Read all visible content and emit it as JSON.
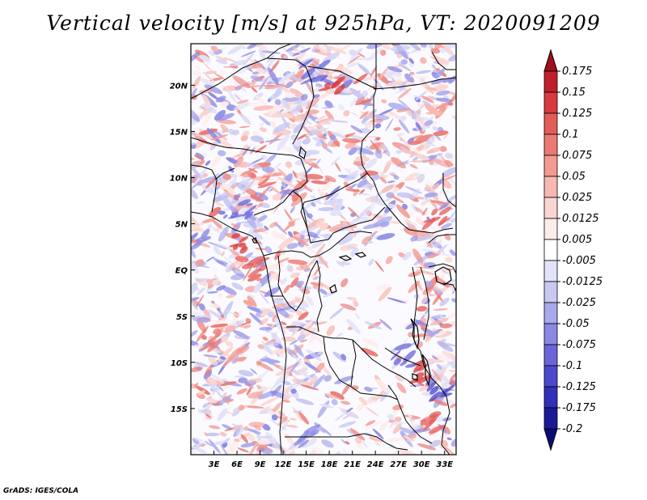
{
  "title": "Vertical velocity [m/s] at 925hPa, VT: 2020091209",
  "footer": "GrADS: IGES/COLA",
  "map": {
    "lon_range": [
      0,
      34.5
    ],
    "lat_range": [
      -20,
      24.5
    ],
    "lat_labels": [
      "20N",
      "15N",
      "10N",
      "5N",
      "EQ",
      "5S",
      "10S",
      "15S"
    ],
    "lat_values": [
      20,
      15,
      10,
      5,
      0,
      -5,
      -10,
      -15
    ],
    "lon_labels": [
      "3E",
      "6E",
      "9E",
      "12E",
      "15E",
      "18E",
      "21E",
      "24E",
      "27E",
      "30E",
      "33E"
    ],
    "lon_values": [
      3,
      6,
      9,
      12,
      15,
      18,
      21,
      24,
      27,
      30,
      33
    ]
  },
  "colorbar": {
    "levels": [
      "0.175",
      "0.15",
      "0.125",
      "0.1",
      "0.075",
      "0.05",
      "0.025",
      "0.0125",
      "0.005",
      "-0.005",
      "-0.0125",
      "-0.025",
      "-0.05",
      "-0.075",
      "-0.1",
      "-0.125",
      "-0.175",
      "-0.2"
    ],
    "colors": [
      "#a0101c",
      "#c01f2a",
      "#d93a3e",
      "#e45c58",
      "#eb7a74",
      "#f39a93",
      "#f8b8b2",
      "#fbd5d1",
      "#fdecea",
      "#ffffff",
      "#e2e2f8",
      "#c8c8f2",
      "#a8a8ec",
      "#8a88e4",
      "#6a66da",
      "#4c48cc",
      "#3030b8",
      "#1a1a98",
      "#0c0c78"
    ]
  }
}
